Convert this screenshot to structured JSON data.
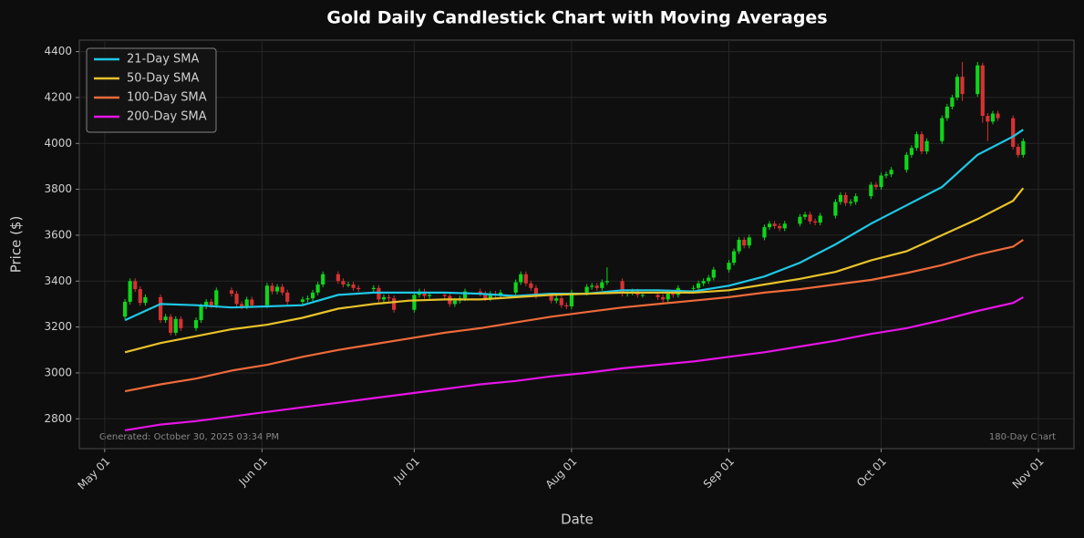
{
  "chart_data": {
    "type": "candlestick",
    "title": "Gold Daily Candlestick Chart with Moving Averages",
    "xlabel": "Date",
    "ylabel": "Price ($)",
    "annotations": [
      "Generated: October 30, 2025 03:34 PM",
      "180-Day Chart"
    ],
    "up_color": "#0fd61a",
    "down_color": "#d63232",
    "grid": true,
    "legend": "upper left",
    "xlim": [
      "Apr 26",
      "Nov 08"
    ],
    "xticks": [
      "May 01",
      "Jun 01",
      "Jul 01",
      "Aug 01",
      "Sep 01",
      "Oct 01",
      "Nov 01"
    ],
    "ylim": [
      2670,
      4450
    ],
    "yticks": [
      2800,
      3000,
      3200,
      3400,
      3600,
      3800,
      4000,
      4200,
      4400
    ],
    "x": [
      "May 05",
      "May 06",
      "May 07",
      "May 08",
      "May 09",
      "May 12",
      "May 13",
      "May 14",
      "May 15",
      "May 16",
      "May 19",
      "May 20",
      "May 21",
      "May 22",
      "May 23",
      "May 26",
      "May 27",
      "May 28",
      "May 29",
      "May 30",
      "Jun 02",
      "Jun 03",
      "Jun 04",
      "Jun 05",
      "Jun 06",
      "Jun 09",
      "Jun 10",
      "Jun 11",
      "Jun 12",
      "Jun 13",
      "Jun 16",
      "Jun 17",
      "Jun 18",
      "Jun 19",
      "Jun 20",
      "Jun 23",
      "Jun 24",
      "Jun 25",
      "Jun 26",
      "Jun 27",
      "Jul 01",
      "Jul 02",
      "Jul 03",
      "Jul 04",
      "Jul 07",
      "Jul 08",
      "Jul 09",
      "Jul 10",
      "Jul 11",
      "Jul 14",
      "Jul 15",
      "Jul 16",
      "Jul 17",
      "Jul 18",
      "Jul 21",
      "Jul 22",
      "Jul 23",
      "Jul 24",
      "Jul 25",
      "Jul 28",
      "Jul 29",
      "Jul 30",
      "Jul 31",
      "Aug 01",
      "Aug 04",
      "Aug 05",
      "Aug 06",
      "Aug 07",
      "Aug 08",
      "Aug 11",
      "Aug 12",
      "Aug 13",
      "Aug 14",
      "Aug 15",
      "Aug 18",
      "Aug 19",
      "Aug 20",
      "Aug 21",
      "Aug 22",
      "Aug 25",
      "Aug 26",
      "Aug 27",
      "Aug 28",
      "Aug 29",
      "Sep 01",
      "Sep 02",
      "Sep 03",
      "Sep 04",
      "Sep 05",
      "Sep 08",
      "Sep 09",
      "Sep 10",
      "Sep 11",
      "Sep 12",
      "Sep 15",
      "Sep 16",
      "Sep 17",
      "Sep 18",
      "Sep 19",
      "Sep 22",
      "Sep 23",
      "Sep 24",
      "Sep 25",
      "Sep 26",
      "Sep 29",
      "Sep 30",
      "Oct 01",
      "Oct 02",
      "Oct 03",
      "Oct 06",
      "Oct 07",
      "Oct 08",
      "Oct 09",
      "Oct 10",
      "Oct 13",
      "Oct 14",
      "Oct 15",
      "Oct 16",
      "Oct 17",
      "Oct 20",
      "Oct 21",
      "Oct 22",
      "Oct 23",
      "Oct 24",
      "Oct 27",
      "Oct 28",
      "Oct 29"
    ],
    "open": [
      3245,
      3310,
      3400,
      3365,
      3305,
      3330,
      3230,
      3245,
      3175,
      3235,
      3195,
      3230,
      3290,
      3310,
      3295,
      3360,
      3345,
      3300,
      3290,
      3320,
      3295,
      3380,
      3355,
      3375,
      3350,
      3310,
      3320,
      3325,
      3350,
      3385,
      3430,
      3400,
      3385,
      3385,
      3370,
      3365,
      3370,
      3320,
      3330,
      3325,
      3275,
      3340,
      3355,
      3335,
      3340,
      3335,
      3300,
      3315,
      3325,
      3355,
      3345,
      3325,
      3345,
      3340,
      3350,
      3395,
      3430,
      3390,
      3370,
      3335,
      3315,
      3325,
      3295,
      3290,
      3350,
      3375,
      3380,
      3370,
      3395,
      3400,
      3345,
      3350,
      3355,
      3340,
      3340,
      3330,
      3320,
      3345,
      3340,
      3370,
      3370,
      3390,
      3400,
      3415,
      3450,
      3480,
      3530,
      3580,
      3555,
      3590,
      3635,
      3650,
      3640,
      3630,
      3650,
      3680,
      3690,
      3660,
      3655,
      3685,
      3745,
      3775,
      3740,
      3745,
      3770,
      3820,
      3810,
      3860,
      3865,
      3885,
      3950,
      3980,
      4040,
      3965,
      4010,
      4110,
      4160,
      4200,
      4290,
      4215,
      4340,
      4120,
      4095,
      4130,
      4110,
      3985,
      3950
    ],
    "high": [
      3322,
      3412,
      3412,
      3377,
      3342,
      3342,
      3257,
      3257,
      3247,
      3247,
      3242,
      3302,
      3322,
      3322,
      3372,
      3372,
      3357,
      3312,
      3332,
      3332,
      3392,
      3392,
      3387,
      3387,
      3362,
      3332,
      3337,
      3362,
      3397,
      3442,
      3442,
      3412,
      3397,
      3397,
      3382,
      3382,
      3382,
      3342,
      3342,
      3337,
      3352,
      3367,
      3367,
      3352,
      3352,
      3347,
      3327,
      3337,
      3367,
      3367,
      3357,
      3357,
      3357,
      3362,
      3407,
      3442,
      3442,
      3402,
      3382,
      3347,
      3337,
      3337,
      3307,
      3362,
      3387,
      3392,
      3392,
      3407,
      3460,
      3412,
      3362,
      3367,
      3367,
      3352,
      3352,
      3342,
      3357,
      3357,
      3382,
      3382,
      3402,
      3412,
      3427,
      3462,
      3492,
      3542,
      3592,
      3592,
      3602,
      3647,
      3662,
      3662,
      3652,
      3662,
      3692,
      3702,
      3702,
      3672,
      3697,
      3757,
      3787,
      3787,
      3757,
      3782,
      3832,
      3832,
      3872,
      3877,
      3897,
      3962,
      3992,
      4052,
      4052,
      4022,
      4122,
      4172,
      4212,
      4302,
      4355,
      4355,
      4352,
      4132,
      4142,
      4142,
      4122,
      3997,
      4022
    ],
    "low": [
      3233,
      3298,
      3353,
      3293,
      3293,
      3218,
      3218,
      3163,
      3163,
      3183,
      3183,
      3218,
      3278,
      3283,
      3283,
      3333,
      3288,
      3278,
      3278,
      3283,
      3283,
      3343,
      3343,
      3338,
      3298,
      3298,
      3308,
      3313,
      3338,
      3373,
      3388,
      3373,
      3373,
      3358,
      3353,
      3353,
      3308,
      3308,
      3313,
      3263,
      3263,
      3328,
      3323,
      3323,
      3323,
      3288,
      3288,
      3303,
      3313,
      3333,
      3313,
      3313,
      3328,
      3328,
      3338,
      3383,
      3378,
      3358,
      3323,
      3303,
      3303,
      3283,
      3278,
      3278,
      3338,
      3363,
      3358,
      3358,
      3383,
      3333,
      3333,
      3338,
      3328,
      3328,
      3318,
      3308,
      3308,
      3328,
      3328,
      3358,
      3358,
      3378,
      3388,
      3403,
      3438,
      3468,
      3518,
      3543,
      3543,
      3578,
      3623,
      3628,
      3618,
      3618,
      3638,
      3668,
      3648,
      3643,
      3643,
      3673,
      3733,
      3728,
      3728,
      3733,
      3758,
      3798,
      3798,
      3848,
      3853,
      3873,
      3938,
      3968,
      3953,
      3953,
      3998,
      4098,
      4148,
      4188,
      4185,
      4203,
      4090,
      4010,
      4083,
      4098,
      3973,
      3938,
      3938
    ],
    "close": [
      3310,
      3400,
      3365,
      3305,
      3330,
      3230,
      3245,
      3175,
      3235,
      3195,
      3230,
      3290,
      3310,
      3295,
      3360,
      3345,
      3300,
      3290,
      3320,
      3295,
      3380,
      3355,
      3375,
      3350,
      3310,
      3320,
      3325,
      3350,
      3385,
      3430,
      3400,
      3385,
      3385,
      3370,
      3365,
      3370,
      3320,
      3330,
      3325,
      3275,
      3340,
      3355,
      3335,
      3340,
      3335,
      3300,
      3315,
      3325,
      3355,
      3345,
      3325,
      3345,
      3340,
      3350,
      3395,
      3430,
      3390,
      3370,
      3335,
      3315,
      3325,
      3295,
      3290,
      3350,
      3375,
      3380,
      3370,
      3395,
      3400,
      3345,
      3350,
      3355,
      3340,
      3340,
      3330,
      3320,
      3345,
      3340,
      3370,
      3370,
      3390,
      3400,
      3415,
      3450,
      3480,
      3530,
      3580,
      3555,
      3590,
      3635,
      3650,
      3640,
      3630,
      3650,
      3680,
      3690,
      3660,
      3655,
      3685,
      3745,
      3775,
      3740,
      3745,
      3770,
      3820,
      3810,
      3860,
      3865,
      3885,
      3950,
      3980,
      4040,
      3965,
      4010,
      4110,
      4160,
      4200,
      4290,
      4215,
      4340,
      4120,
      4095,
      4130,
      4110,
      3985,
      3950,
      4010
    ],
    "series": [
      {
        "name": "21-Day SMA",
        "color": "#1ec8e6",
        "x": [
          "May 05",
          "May 12",
          "May 19",
          "May 26",
          "Jun 02",
          "Jun 09",
          "Jun 16",
          "Jun 23",
          "Jun 30",
          "Jul 07",
          "Jul 14",
          "Jul 21",
          "Jul 28",
          "Aug 04",
          "Aug 11",
          "Aug 18",
          "Aug 25",
          "Sep 01",
          "Sep 08",
          "Sep 15",
          "Sep 22",
          "Sep 29",
          "Oct 06",
          "Oct 13",
          "Oct 20",
          "Oct 27",
          "Oct 29"
        ],
        "values": [
          3230,
          3300,
          3295,
          3285,
          3290,
          3295,
          3340,
          3350,
          3350,
          3350,
          3345,
          3335,
          3345,
          3345,
          3360,
          3360,
          3355,
          3380,
          3420,
          3480,
          3560,
          3650,
          3730,
          3810,
          3950,
          4030,
          4060
        ]
      },
      {
        "name": "50-Day SMA",
        "color": "#e8c22a",
        "x": [
          "May 05",
          "May 12",
          "May 19",
          "May 26",
          "Jun 02",
          "Jun 09",
          "Jun 16",
          "Jun 23",
          "Jun 30",
          "Jul 07",
          "Jul 14",
          "Jul 21",
          "Jul 28",
          "Aug 04",
          "Aug 11",
          "Aug 18",
          "Aug 25",
          "Sep 01",
          "Sep 08",
          "Sep 15",
          "Sep 22",
          "Sep 29",
          "Oct 06",
          "Oct 13",
          "Oct 20",
          "Oct 27",
          "Oct 29"
        ],
        "values": [
          3090,
          3130,
          3160,
          3190,
          3210,
          3240,
          3280,
          3300,
          3315,
          3320,
          3320,
          3330,
          3340,
          3345,
          3350,
          3350,
          3350,
          3360,
          3385,
          3410,
          3440,
          3490,
          3530,
          3600,
          3670,
          3750,
          3805
        ]
      },
      {
        "name": "100-Day SMA",
        "color": "#ee6a3a",
        "x": [
          "May 05",
          "May 12",
          "May 19",
          "May 26",
          "Jun 02",
          "Jun 09",
          "Jun 16",
          "Jun 23",
          "Jun 30",
          "Jul 07",
          "Jul 14",
          "Jul 21",
          "Jul 28",
          "Aug 04",
          "Aug 11",
          "Aug 18",
          "Aug 25",
          "Sep 01",
          "Sep 08",
          "Sep 15",
          "Sep 22",
          "Sep 29",
          "Oct 06",
          "Oct 13",
          "Oct 20",
          "Oct 27",
          "Oct 29"
        ],
        "values": [
          2920,
          2950,
          2975,
          3010,
          3035,
          3070,
          3100,
          3125,
          3150,
          3175,
          3195,
          3220,
          3245,
          3265,
          3285,
          3300,
          3315,
          3330,
          3350,
          3365,
          3385,
          3405,
          3435,
          3470,
          3515,
          3550,
          3580
        ]
      },
      {
        "name": "200-Day SMA",
        "color": "#e614e6",
        "x": [
          "May 05",
          "May 12",
          "May 19",
          "May 26",
          "Jun 02",
          "Jun 09",
          "Jun 16",
          "Jun 23",
          "Jun 30",
          "Jul 07",
          "Jul 14",
          "Jul 21",
          "Jul 28",
          "Aug 04",
          "Aug 11",
          "Aug 18",
          "Aug 25",
          "Sep 01",
          "Sep 08",
          "Sep 15",
          "Sep 22",
          "Sep 29",
          "Oct 06",
          "Oct 13",
          "Oct 20",
          "Oct 27",
          "Oct 29"
        ],
        "values": [
          2750,
          2775,
          2790,
          2810,
          2830,
          2850,
          2870,
          2890,
          2910,
          2930,
          2950,
          2965,
          2985,
          3000,
          3020,
          3035,
          3050,
          3070,
          3090,
          3115,
          3140,
          3170,
          3195,
          3230,
          3270,
          3305,
          3330
        ]
      }
    ]
  }
}
